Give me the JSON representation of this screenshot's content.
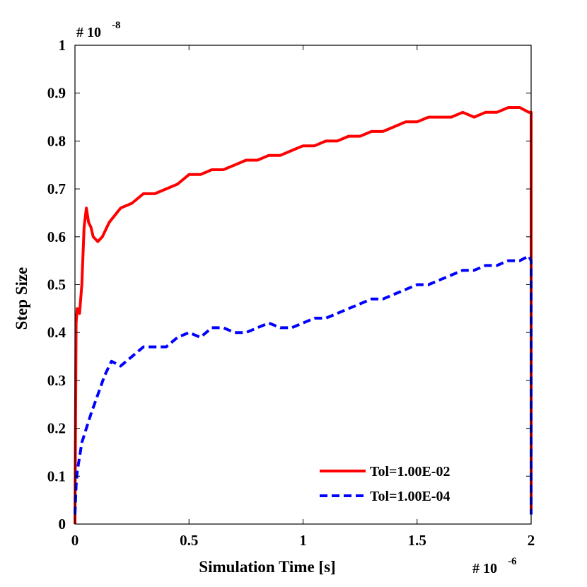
{
  "chart_data": {
    "type": "line",
    "title": "",
    "xlabel": "Simulation Time [s]",
    "ylabel": "Step Size",
    "xlim": [
      0,
      2
    ],
    "ylim": [
      0,
      1
    ],
    "xticks": [
      "0",
      "0.5",
      "1",
      "1.5",
      "2"
    ],
    "yticks": [
      "0",
      "0.1",
      "0.2",
      "0.3",
      "0.4",
      "0.5",
      "0.6",
      "0.7",
      "0.8",
      "0.9",
      "1"
    ],
    "x_exponent": {
      "base": "# 10",
      "power": "-6"
    },
    "y_exponent": {
      "base": "# 10",
      "power": "-8"
    },
    "legend_position": "bottom-right",
    "series": [
      {
        "name": "Tol=1.00E-02",
        "color": "#ff0000",
        "style": "solid",
        "x": [
          0,
          0.005,
          0.01,
          0.02,
          0.03,
          0.04,
          0.05,
          0.06,
          0.07,
          0.08,
          0.1,
          0.12,
          0.15,
          0.2,
          0.25,
          0.3,
          0.35,
          0.4,
          0.45,
          0.5,
          0.55,
          0.6,
          0.65,
          0.7,
          0.75,
          0.8,
          0.85,
          0.9,
          0.95,
          1.0,
          1.05,
          1.1,
          1.15,
          1.2,
          1.25,
          1.3,
          1.35,
          1.4,
          1.45,
          1.5,
          1.55,
          1.6,
          1.65,
          1.7,
          1.75,
          1.8,
          1.85,
          1.9,
          1.95,
          1.99,
          2.0,
          2.0
        ],
        "y": [
          0.0,
          0.42,
          0.45,
          0.44,
          0.5,
          0.62,
          0.66,
          0.63,
          0.62,
          0.6,
          0.59,
          0.6,
          0.63,
          0.66,
          0.67,
          0.69,
          0.69,
          0.7,
          0.71,
          0.73,
          0.73,
          0.74,
          0.74,
          0.75,
          0.76,
          0.76,
          0.77,
          0.77,
          0.78,
          0.79,
          0.79,
          0.8,
          0.8,
          0.81,
          0.81,
          0.82,
          0.82,
          0.83,
          0.84,
          0.84,
          0.85,
          0.85,
          0.85,
          0.86,
          0.85,
          0.86,
          0.86,
          0.87,
          0.87,
          0.86,
          0.86,
          0.02
        ]
      },
      {
        "name": "Tol=1.00E-04",
        "color": "#0000ff",
        "style": "dashed",
        "x": [
          0,
          0.005,
          0.01,
          0.02,
          0.03,
          0.05,
          0.07,
          0.1,
          0.13,
          0.16,
          0.2,
          0.25,
          0.3,
          0.35,
          0.4,
          0.45,
          0.5,
          0.55,
          0.6,
          0.65,
          0.7,
          0.75,
          0.8,
          0.85,
          0.9,
          0.95,
          1.0,
          1.05,
          1.1,
          1.15,
          1.2,
          1.25,
          1.3,
          1.35,
          1.4,
          1.45,
          1.5,
          1.55,
          1.6,
          1.65,
          1.7,
          1.75,
          1.8,
          1.85,
          1.9,
          1.95,
          1.99,
          2.0,
          2.0
        ],
        "y": [
          0.02,
          0.08,
          0.11,
          0.14,
          0.17,
          0.2,
          0.23,
          0.27,
          0.31,
          0.34,
          0.33,
          0.35,
          0.37,
          0.37,
          0.37,
          0.39,
          0.4,
          0.39,
          0.41,
          0.41,
          0.4,
          0.4,
          0.41,
          0.42,
          0.41,
          0.41,
          0.42,
          0.43,
          0.43,
          0.44,
          0.45,
          0.46,
          0.47,
          0.47,
          0.48,
          0.49,
          0.5,
          0.5,
          0.51,
          0.52,
          0.53,
          0.53,
          0.54,
          0.54,
          0.55,
          0.55,
          0.56,
          0.55,
          0.02
        ]
      }
    ]
  }
}
